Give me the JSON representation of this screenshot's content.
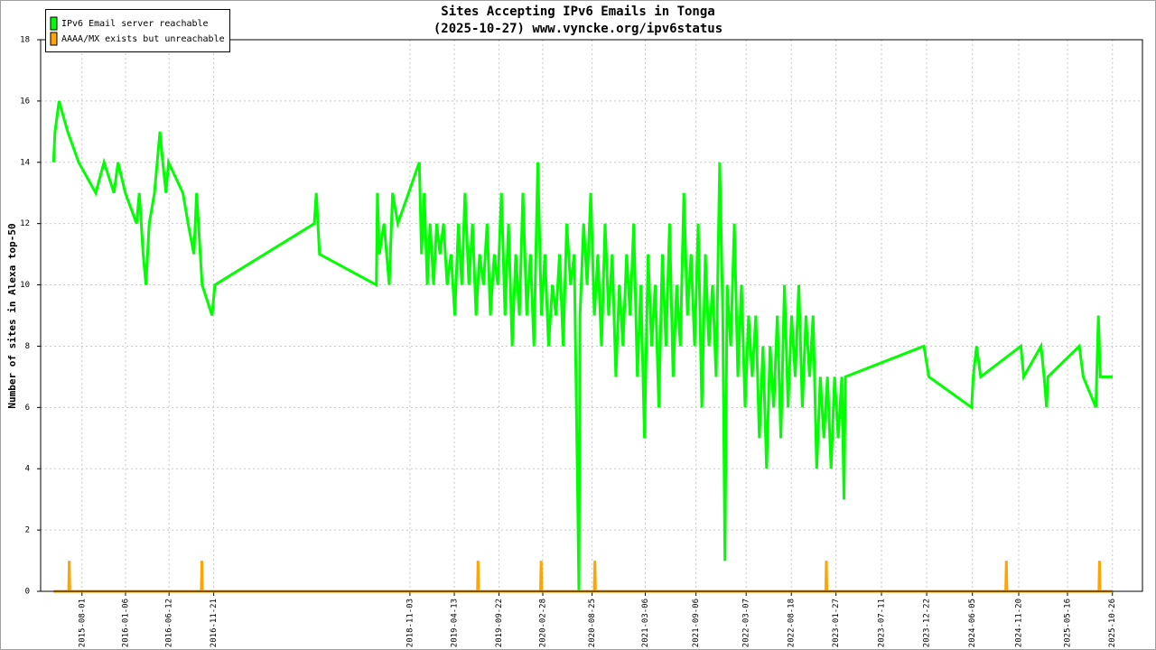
{
  "chart_data": {
    "type": "line",
    "title": "Sites Accepting IPv6 Emails in Tonga",
    "subtitle": "(2025-10-27) www.vyncke.org/ipv6status",
    "y_label": "Number of sites in Alexa top-50",
    "legend_position": "upper left",
    "grid": true,
    "xlim": [
      "2015-03-04",
      "2026-02-12"
    ],
    "xticks": [
      "2015-08-01",
      "2016-01-06",
      "2016-06-12",
      "2016-11-21",
      "2018-11-03",
      "2019-04-13",
      "2019-09-22",
      "2020-02-28",
      "2020-08-25",
      "2021-03-06",
      "2021-09-06",
      "2022-03-07",
      "2022-08-18",
      "2023-01-27",
      "2023-07-11",
      "2023-12-22",
      "2024-06-05",
      "2024-11-20",
      "2025-05-16",
      "2025-10-26"
    ],
    "ylim": [
      0,
      18
    ],
    "yticks": [
      0,
      2,
      4,
      6,
      8,
      10,
      12,
      14,
      16,
      18
    ],
    "series": [
      {
        "name": "IPv6 Email server reachable",
        "color": "#00ff00",
        "x": [
          "2015-04-20",
          "2015-04-25",
          "2015-05-10",
          "2015-06-10",
          "2015-07-20",
          "2015-09-20",
          "2015-10-20",
          "2015-11-25",
          "2015-12-10",
          "2016-01-05",
          "2016-02-15",
          "2016-02-25",
          "2016-03-10",
          "2016-03-20",
          "2016-04-01",
          "2016-04-20",
          "2016-05-10",
          "2016-05-20",
          "2016-06-01",
          "2016-06-10",
          "2016-08-01",
          "2016-08-20",
          "2016-09-10",
          "2016-09-20",
          "2016-10-10",
          "2016-11-15",
          "2016-11-25",
          "2017-11-21",
          "2017-11-28",
          "2017-12-10",
          "2018-07-04",
          "2018-07-08",
          "2018-07-15",
          "2018-08-01",
          "2018-08-20",
          "2018-09-01",
          "2018-09-20",
          "2018-12-07",
          "2018-12-15",
          "2018-12-25",
          "2019-01-05",
          "2019-01-15",
          "2019-01-28",
          "2019-02-08",
          "2019-02-20",
          "2019-03-05",
          "2019-03-18",
          "2019-04-01",
          "2019-04-15",
          "2019-04-28",
          "2019-05-10",
          "2019-05-22",
          "2019-06-05",
          "2019-06-18",
          "2019-07-01",
          "2019-07-14",
          "2019-07-28",
          "2019-08-10",
          "2019-08-22",
          "2019-09-05",
          "2019-09-18",
          "2019-10-01",
          "2019-10-14",
          "2019-10-27",
          "2019-11-09",
          "2019-11-22",
          "2019-12-05",
          "2019-12-18",
          "2020-01-01",
          "2020-01-14",
          "2020-01-27",
          "2020-02-10",
          "2020-02-23",
          "2020-03-07",
          "2020-03-20",
          "2020-04-03",
          "2020-04-16",
          "2020-04-29",
          "2020-05-12",
          "2020-05-25",
          "2020-06-08",
          "2020-06-21",
          "2020-07-04",
          "2020-07-08",
          "2020-07-12",
          "2020-07-25",
          "2020-08-07",
          "2020-08-20",
          "2020-09-02",
          "2020-09-15",
          "2020-09-28",
          "2020-10-11",
          "2020-10-24",
          "2020-11-06",
          "2020-11-19",
          "2020-12-02",
          "2020-12-15",
          "2020-12-28",
          "2021-01-10",
          "2021-01-23",
          "2021-02-05",
          "2021-02-18",
          "2021-03-03",
          "2021-03-16",
          "2021-03-29",
          "2021-04-11",
          "2021-04-24",
          "2021-05-07",
          "2021-05-20",
          "2021-06-02",
          "2021-06-15",
          "2021-06-28",
          "2021-07-11",
          "2021-07-24",
          "2021-08-06",
          "2021-08-19",
          "2021-09-01",
          "2021-09-14",
          "2021-09-27",
          "2021-10-10",
          "2021-10-23",
          "2021-11-05",
          "2021-11-18",
          "2021-12-01",
          "2021-12-12",
          "2021-12-20",
          "2021-12-28",
          "2022-01-10",
          "2022-01-23",
          "2022-02-05",
          "2022-02-18",
          "2022-03-03",
          "2022-03-16",
          "2022-03-29",
          "2022-04-11",
          "2022-04-24",
          "2022-05-07",
          "2022-05-20",
          "2022-06-02",
          "2022-06-15",
          "2022-06-28",
          "2022-07-11",
          "2022-07-24",
          "2022-08-06",
          "2022-08-19",
          "2022-09-01",
          "2022-09-14",
          "2022-09-27",
          "2022-10-10",
          "2022-10-23",
          "2022-11-05",
          "2022-11-18",
          "2022-12-01",
          "2022-12-14",
          "2022-12-27",
          "2023-01-09",
          "2023-01-22",
          "2023-02-04",
          "2023-02-17",
          "2023-02-25",
          "2023-03-02",
          "2023-12-12",
          "2023-12-30",
          "2024-06-02",
          "2024-06-08",
          "2024-06-20",
          "2024-07-05",
          "2024-11-28",
          "2024-12-08",
          "2025-02-09",
          "2025-02-20",
          "2025-03-01",
          "2025-03-06",
          "2025-06-28",
          "2025-07-12",
          "2025-08-27",
          "2025-09-05",
          "2025-09-12",
          "2025-10-27"
        ],
        "values": [
          14,
          15,
          16,
          15,
          14,
          13,
          14,
          13,
          14,
          13,
          12,
          13,
          11,
          10,
          12,
          13,
          15,
          14,
          13,
          14,
          13,
          12,
          11,
          13,
          10,
          9,
          10,
          12,
          13,
          11,
          10,
          13,
          11,
          12,
          10,
          13,
          12,
          14,
          11,
          13,
          10,
          12,
          10,
          12,
          11,
          12,
          10,
          11,
          9,
          12,
          10,
          13,
          10,
          12,
          9,
          11,
          10,
          12,
          9,
          11,
          10,
          13,
          9,
          12,
          8,
          11,
          9,
          13,
          9,
          11,
          8,
          14,
          9,
          11,
          8,
          10,
          9,
          11,
          8,
          12,
          10,
          11,
          3,
          0,
          9,
          12,
          10,
          13,
          9,
          11,
          8,
          12,
          9,
          11,
          7,
          10,
          8,
          11,
          9,
          12,
          7,
          10,
          5,
          11,
          8,
          10,
          6,
          11,
          8,
          12,
          7,
          10,
          8,
          13,
          9,
          11,
          8,
          12,
          6,
          11,
          8,
          10,
          7,
          14,
          9,
          1,
          10,
          8,
          12,
          7,
          10,
          6,
          9,
          7,
          9,
          5,
          8,
          4,
          8,
          6,
          9,
          5,
          10,
          6,
          9,
          7,
          10,
          6,
          9,
          7,
          9,
          4,
          7,
          5,
          7,
          4,
          7,
          5,
          7,
          3,
          7,
          8,
          7,
          6,
          7,
          8,
          7,
          8,
          7,
          8,
          7,
          6,
          7,
          8,
          7,
          6,
          9,
          7,
          7
        ]
      },
      {
        "name": "AAAA/MX exists but unreachable",
        "color": "#ffa500",
        "x": [
          "2015-04-20",
          "2015-06-14",
          "2015-06-16",
          "2015-06-18",
          "2016-10-07",
          "2016-10-09",
          "2016-10-11",
          "2019-07-06",
          "2019-07-08",
          "2019-07-10",
          "2020-02-20",
          "2020-02-22",
          "2020-02-24",
          "2020-09-02",
          "2020-09-04",
          "2020-09-06",
          "2022-12-21",
          "2022-12-23",
          "2022-12-25",
          "2024-10-04",
          "2024-10-06",
          "2024-10-08",
          "2025-09-07",
          "2025-09-09",
          "2025-09-11",
          "2025-10-27"
        ],
        "values": [
          0,
          0,
          1,
          0,
          0,
          1,
          0,
          0,
          1,
          0,
          0,
          1,
          0,
          0,
          1,
          0,
          0,
          1,
          0,
          0,
          1,
          0,
          0,
          1,
          0,
          0
        ]
      }
    ]
  }
}
